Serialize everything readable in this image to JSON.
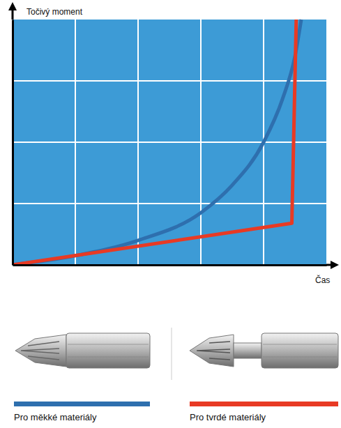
{
  "chart_data": {
    "type": "line",
    "x_label": "Čas",
    "y_label": "Točivý moment",
    "xlim": [
      0,
      5
    ],
    "ylim": [
      0,
      4
    ],
    "xticks": [
      1,
      2,
      3,
      4
    ],
    "yticks": [
      1,
      2,
      3
    ],
    "grid": true,
    "tick_labels": false,
    "legend": "bottom",
    "series": [
      {
        "name": "Pro měkké materiály",
        "color": "#2e6fae",
        "line_style": "solid",
        "x": [
          0,
          1,
          2,
          3,
          3.5,
          4,
          4.3,
          4.5,
          4.6
        ],
        "values": [
          0,
          0.15,
          0.4,
          0.85,
          1.3,
          2.0,
          2.7,
          3.4,
          4.0
        ]
      },
      {
        "name": "Pro tvrdé materiály",
        "color": "#e83a24",
        "line_style": "solid",
        "x": [
          0,
          4.45,
          4.52
        ],
        "values": [
          0,
          0.68,
          4.0
        ]
      }
    ]
  }
}
